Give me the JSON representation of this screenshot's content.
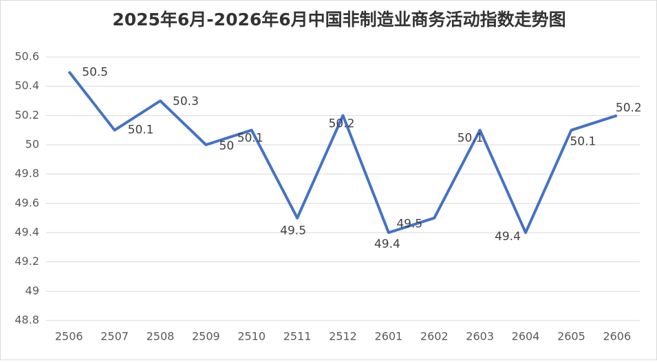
{
  "chart_data": {
    "type": "line",
    "title": "2025年6月-2026年6月中国非制造业商务活动指数走势图",
    "categories": [
      "2506",
      "2507",
      "2508",
      "2509",
      "2510",
      "2511",
      "2512",
      "2601",
      "2602",
      "2603",
      "2604",
      "2605",
      "2606"
    ],
    "values": [
      50.5,
      50.1,
      50.3,
      50,
      50.1,
      49.5,
      50.2,
      49.4,
      49.5,
      50.1,
      49.4,
      50.1,
      50.2
    ],
    "color": "#4472c4",
    "ylim": [
      48.8,
      50.6
    ],
    "yticks": [
      48.8,
      49,
      49.2,
      49.4,
      49.6,
      49.8,
      50,
      50.2,
      50.4,
      50.6
    ],
    "grid": true
  }
}
